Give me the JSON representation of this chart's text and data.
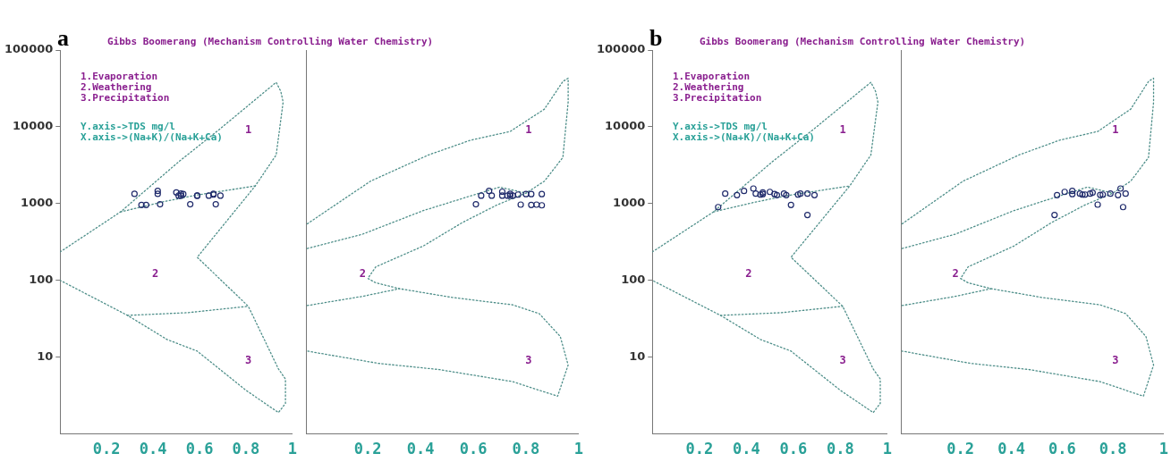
{
  "chart_data": [
    {
      "type": "scatter",
      "title": "Gibbs Boomerang (Mechanism Controlling Water Chemistry)",
      "log": "y",
      "xlim": [
        0,
        1
      ],
      "ylim": [
        1,
        100000
      ],
      "xticks": [
        0.2,
        0.4,
        0.6,
        0.8,
        1
      ],
      "yticks": [
        10,
        100,
        1000,
        10000,
        100000
      ],
      "grid": false,
      "legend": false,
      "marker": "circle",
      "annotations": [
        "a",
        "1.Evaporation",
        "2.Weathering",
        "3.Precipitation",
        "Y.axis->TDS mg/l",
        "X.axis->(Na+K)/(Na+K+Ca)",
        "1",
        "2",
        "3"
      ],
      "series": [
        {
          "type": "scatter",
          "color": "#1f2a6b",
          "x": [
            0.32,
            0.35,
            0.37,
            0.42,
            0.42,
            0.43,
            0.5,
            0.51,
            0.52,
            0.52,
            0.53,
            0.56,
            0.59,
            0.59,
            0.64,
            0.66,
            0.66,
            0.69,
            0.67
          ],
          "values": [
            1340,
            960,
            960,
            1460,
            1340,
            980,
            1400,
            1270,
            1270,
            1350,
            1330,
            980,
            1270,
            1270,
            1270,
            1310,
            1340,
            1270,
            980
          ]
        },
        {
          "type": "line",
          "color": "#4f8f8a",
          "line_style": "dotted",
          "marker": "none",
          "x": [
            0,
            0.26,
            0.51,
            0.69,
            0.93,
            0.95,
            0.96,
            0.93,
            0.84,
            0.59,
            0.81,
            0.94,
            0.97,
            0.97,
            0.94,
            0.8,
            0.59,
            0.46,
            0.29,
            0
          ],
          "values": [
            235,
            780,
            3500,
            9500,
            38000,
            29000,
            21000,
            4300,
            1700,
            200,
            46,
            7,
            5.2,
            2.5,
            1.9,
            3.7,
            12,
            17,
            35,
            100
          ]
        },
        {
          "type": "line",
          "color": "#4f8f8a",
          "line_style": "dotted",
          "marker": "none",
          "x": [
            0.26,
            0.44,
            0.58,
            0.84
          ],
          "values": [
            780,
            1050,
            1280,
            1700
          ]
        },
        {
          "type": "line",
          "color": "#4f8f8a",
          "line_style": "dotted",
          "marker": "none",
          "x": [
            0.29,
            0.55,
            0.81
          ],
          "values": [
            35,
            38,
            46
          ]
        }
      ]
    },
    {
      "type": "scatter",
      "log": "y",
      "xlim": [
        -0.035,
        1
      ],
      "ylim": [
        1,
        100000
      ],
      "xticks": [
        0.2,
        0.4,
        0.6,
        0.8,
        1
      ],
      "yticks": [
        10,
        100,
        1000,
        10000,
        100000
      ],
      "tick_labels": "x",
      "grid": false,
      "legend": false,
      "marker": "circle",
      "annotations": [
        "1",
        "2",
        "3"
      ],
      "series": [
        {
          "type": "scatter",
          "color": "#1f2a6b",
          "x": [
            0.61,
            0.63,
            0.66,
            0.67,
            0.71,
            0.71,
            0.73,
            0.74,
            0.74,
            0.75,
            0.77,
            0.78,
            0.8,
            0.82,
            0.82,
            0.84,
            0.86,
            0.86
          ],
          "values": [
            980,
            1270,
            1460,
            1270,
            1430,
            1270,
            1270,
            1270,
            1340,
            1270,
            1310,
            970,
            1330,
            1330,
            960,
            970,
            1330,
            950
          ]
        },
        {
          "type": "line",
          "color": "#4f8f8a",
          "line_style": "dotted",
          "marker": "none",
          "x": [
            -0.03,
            0.21,
            0.43,
            0.59,
            0.74,
            0.87,
            0.94,
            0.96,
            0.96,
            0.94,
            0.87,
            0.8,
            0.69,
            0.56,
            0.41,
            0.23,
            0.2,
            0.23,
            0.32,
            0.52,
            0.75,
            0.85,
            0.93,
            0.96,
            0.92,
            0.75,
            0.47,
            0.24,
            -0.03
          ],
          "values": [
            545,
            1960,
            4300,
            6700,
            8700,
            17000,
            39000,
            43000,
            21000,
            4000,
            1960,
            1370,
            960,
            570,
            280,
            150,
            106,
            93,
            78,
            60,
            48,
            37,
            18.6,
            7.9,
            3.1,
            4.8,
            6.9,
            8.3,
            12
          ]
        },
        {
          "type": "line",
          "color": "#4f8f8a",
          "line_style": "dotted",
          "marker": "none",
          "x": [
            -0.03,
            0.18,
            0.41,
            0.59,
            0.7,
            0.8
          ],
          "values": [
            260,
            400,
            810,
            1260,
            1640,
            1370
          ]
        },
        {
          "type": "line",
          "color": "#4f8f8a",
          "line_style": "dotted",
          "marker": "none",
          "x": [
            -0.03,
            0.18,
            0.32
          ],
          "values": [
            47,
            62,
            78
          ]
        }
      ]
    },
    {
      "type": "scatter",
      "title": "Gibbs Boomerang (Mechanism Controlling Water Chemistry)",
      "log": "y",
      "xlim": [
        0,
        1
      ],
      "ylim": [
        1,
        100000
      ],
      "xticks": [
        0.2,
        0.4,
        0.6,
        0.8,
        1
      ],
      "yticks": [
        10,
        100,
        1000,
        10000,
        100000
      ],
      "grid": false,
      "legend": false,
      "marker": "circle",
      "annotations": [
        "b",
        "1.Evaporation",
        "2.Weathering",
        "3.Precipitation",
        "Y.axis->TDS mg/l",
        "X.axis->(Na+K)/(Na+K+Ca)",
        "1",
        "2",
        "3"
      ],
      "series": [
        {
          "type": "scatter",
          "color": "#1f2a6b",
          "x": [
            0.28,
            0.31,
            0.36,
            0.39,
            0.43,
            0.44,
            0.46,
            0.47,
            0.47,
            0.5,
            0.52,
            0.53,
            0.56,
            0.57,
            0.59,
            0.62,
            0.63,
            0.66,
            0.66,
            0.69
          ],
          "values": [
            900,
            1350,
            1290,
            1460,
            1570,
            1350,
            1310,
            1330,
            1400,
            1420,
            1330,
            1290,
            1350,
            1290,
            960,
            1310,
            1350,
            1350,
            710,
            1290
          ]
        },
        {
          "type": "line",
          "color": "#4f8f8a",
          "line_style": "dotted",
          "marker": "none",
          "x": [
            0,
            0.26,
            0.51,
            0.69,
            0.93,
            0.95,
            0.96,
            0.93,
            0.84,
            0.59,
            0.81,
            0.94,
            0.97,
            0.97,
            0.94,
            0.8,
            0.59,
            0.46,
            0.29,
            0
          ],
          "values": [
            235,
            780,
            3500,
            9500,
            38000,
            29000,
            21000,
            4300,
            1700,
            200,
            46,
            7,
            5.2,
            2.5,
            1.9,
            3.7,
            12,
            17,
            35,
            100
          ]
        },
        {
          "type": "line",
          "color": "#4f8f8a",
          "line_style": "dotted",
          "marker": "none",
          "x": [
            0.26,
            0.44,
            0.58,
            0.84
          ],
          "values": [
            780,
            1050,
            1280,
            1700
          ]
        },
        {
          "type": "line",
          "color": "#4f8f8a",
          "line_style": "dotted",
          "marker": "none",
          "x": [
            0.29,
            0.55,
            0.81
          ],
          "values": [
            35,
            38,
            46
          ]
        }
      ]
    },
    {
      "type": "scatter",
      "log": "y",
      "xlim": [
        -0.035,
        1
      ],
      "ylim": [
        1,
        100000
      ],
      "xticks": [
        0.2,
        0.4,
        0.6,
        0.8,
        1
      ],
      "yticks": [
        10,
        100,
        1000,
        10000,
        100000
      ],
      "tick_labels": "x",
      "grid": false,
      "legend": false,
      "marker": "circle",
      "annotations": [
        "1",
        "2",
        "3"
      ],
      "series": [
        {
          "type": "scatter",
          "color": "#1f2a6b",
          "x": [
            0.57,
            0.58,
            0.61,
            0.64,
            0.64,
            0.67,
            0.68,
            0.69,
            0.71,
            0.72,
            0.74,
            0.75,
            0.76,
            0.79,
            0.82,
            0.83,
            0.84,
            0.85
          ],
          "values": [
            710,
            1290,
            1420,
            1460,
            1330,
            1350,
            1310,
            1310,
            1350,
            1390,
            970,
            1300,
            1310,
            1350,
            1290,
            1570,
            900,
            1350
          ]
        },
        {
          "type": "line",
          "color": "#4f8f8a",
          "line_style": "dotted",
          "marker": "none",
          "x": [
            -0.03,
            0.21,
            0.43,
            0.59,
            0.74,
            0.87,
            0.94,
            0.96,
            0.96,
            0.94,
            0.87,
            0.8,
            0.69,
            0.56,
            0.41,
            0.23,
            0.2,
            0.23,
            0.32,
            0.52,
            0.75,
            0.85,
            0.93,
            0.96,
            0.92,
            0.75,
            0.47,
            0.24,
            -0.03
          ],
          "values": [
            545,
            1960,
            4300,
            6700,
            8700,
            17000,
            39000,
            43000,
            21000,
            4000,
            1960,
            1370,
            960,
            570,
            280,
            150,
            106,
            93,
            78,
            60,
            48,
            37,
            18.6,
            7.9,
            3.1,
            4.8,
            6.9,
            8.3,
            12
          ]
        },
        {
          "type": "line",
          "color": "#4f8f8a",
          "line_style": "dotted",
          "marker": "none",
          "x": [
            -0.03,
            0.18,
            0.41,
            0.59,
            0.7,
            0.8
          ],
          "values": [
            260,
            400,
            810,
            1260,
            1640,
            1370
          ]
        },
        {
          "type": "line",
          "color": "#4f8f8a",
          "line_style": "dotted",
          "marker": "none",
          "x": [
            -0.03,
            0.18,
            0.32
          ],
          "values": [
            47,
            62,
            78
          ]
        }
      ]
    }
  ]
}
